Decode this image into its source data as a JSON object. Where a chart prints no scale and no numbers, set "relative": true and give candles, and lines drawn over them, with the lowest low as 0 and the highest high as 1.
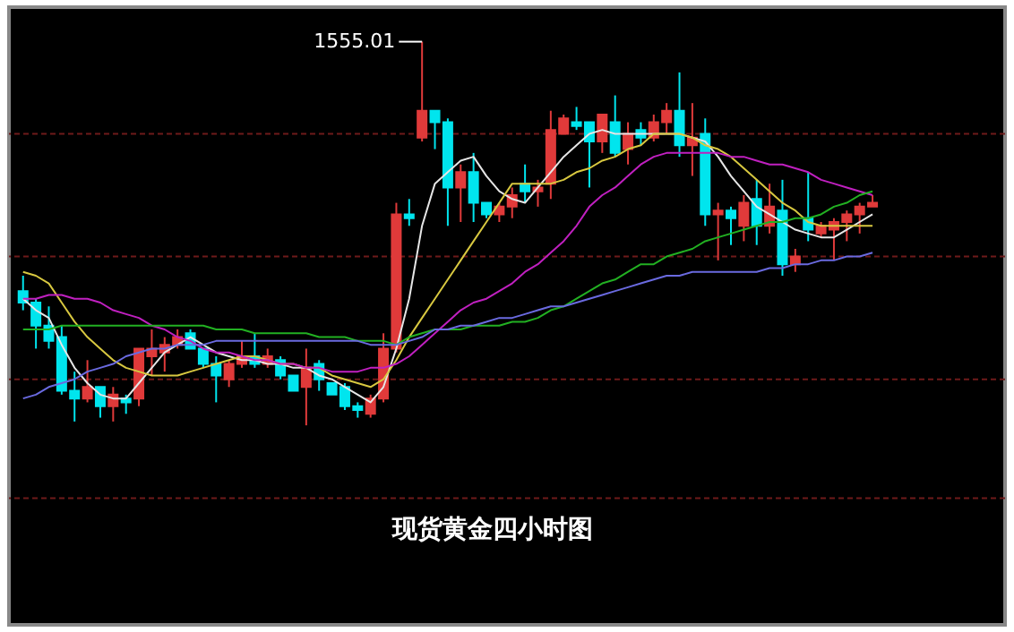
{
  "chart_data": {
    "type": "candlestick",
    "title": "现货黄金四小时图",
    "relative": true,
    "tick_labels": false,
    "grid": false,
    "categories": [
      null,
      null,
      null,
      null,
      null,
      null,
      null,
      null,
      null,
      null,
      null,
      null,
      null,
      null,
      null,
      null,
      null,
      null,
      null,
      null,
      null,
      null,
      null,
      null,
      null,
      null,
      null,
      null,
      null,
      null,
      null,
      null,
      null,
      null,
      null,
      null,
      null,
      null,
      null,
      null,
      null,
      null,
      null,
      null,
      null,
      null,
      null,
      null,
      null,
      null,
      null,
      null,
      null,
      null,
      null,
      null,
      null,
      null,
      null,
      null,
      null,
      null,
      null,
      null,
      null,
      null,
      null
    ],
    "ohlc": [
      [
        0.35,
        0.39,
        0.3,
        0.32
      ],
      [
        0.32,
        0.33,
        0.2,
        0.26
      ],
      [
        0.26,
        0.31,
        0.2,
        0.22
      ],
      [
        0.23,
        0.26,
        0.08,
        0.09
      ],
      [
        0.09,
        0.14,
        0.01,
        0.07
      ],
      [
        0.07,
        0.17,
        0.06,
        0.1
      ],
      [
        0.1,
        0.1,
        0.02,
        0.05
      ],
      [
        0.05,
        0.1,
        0.01,
        0.08
      ],
      [
        0.07,
        0.08,
        0.03,
        0.06
      ],
      [
        0.07,
        0.2,
        0.05,
        0.2
      ],
      [
        0.18,
        0.25,
        0.13,
        0.2
      ],
      [
        0.19,
        0.23,
        0.14,
        0.21
      ],
      [
        0.21,
        0.25,
        0.2,
        0.23
      ],
      [
        0.24,
        0.25,
        0.2,
        0.2
      ],
      [
        0.2,
        0.2,
        0.15,
        0.16
      ],
      [
        0.16,
        0.18,
        0.06,
        0.13
      ],
      [
        0.12,
        0.17,
        0.1,
        0.16
      ],
      [
        0.16,
        0.22,
        0.15,
        0.18
      ],
      [
        0.18,
        0.24,
        0.15,
        0.16
      ],
      [
        0.16,
        0.2,
        0.15,
        0.18
      ],
      [
        0.17,
        0.18,
        0.12,
        0.13
      ],
      [
        0.13,
        0.13,
        0.09,
        0.09
      ],
      [
        0.1,
        0.2,
        0,
        0.15
      ],
      [
        0.16,
        0.17,
        0.09,
        0.12
      ],
      [
        0.11,
        0.11,
        0.08,
        0.08
      ],
      [
        0.1,
        0.11,
        0.04,
        0.05
      ],
      [
        0.05,
        0.06,
        0.02,
        0.04
      ],
      [
        0.03,
        0.08,
        0.02,
        0.07
      ],
      [
        0.07,
        0.24,
        0.06,
        0.2
      ],
      [
        0.2,
        0.58,
        0.19,
        0.55
      ],
      [
        0.55,
        0.59,
        0.52,
        0.54
      ],
      [
        0.75,
        1,
        0.74,
        0.82
      ],
      [
        0.82,
        0.82,
        0.72,
        0.79
      ],
      [
        0.79,
        0.8,
        0.52,
        0.62
      ],
      [
        0.62,
        0.68,
        0.53,
        0.66
      ],
      [
        0.66,
        0.71,
        0.53,
        0.58
      ],
      [
        0.58,
        0.58,
        0.54,
        0.55
      ],
      [
        0.55,
        0.58,
        0.53,
        0.57
      ],
      [
        0.57,
        0.62,
        0.54,
        0.6
      ],
      [
        0.63,
        0.68,
        0.58,
        0.61
      ],
      [
        0.61,
        0.64,
        0.57,
        0.62
      ],
      [
        0.63,
        0.82,
        0.59,
        0.77
      ],
      [
        0.76,
        0.81,
        0.76,
        0.8
      ],
      [
        0.79,
        0.83,
        0.77,
        0.78
      ],
      [
        0.79,
        0.79,
        0.62,
        0.74
      ],
      [
        0.74,
        0.81,
        0.71,
        0.81
      ],
      [
        0.79,
        0.86,
        0.7,
        0.71
      ],
      [
        0.72,
        0.79,
        0.68,
        0.76
      ],
      [
        0.77,
        0.79,
        0.73,
        0.75
      ],
      [
        0.75,
        0.81,
        0.74,
        0.79
      ],
      [
        0.79,
        0.84,
        0.76,
        0.82
      ],
      [
        0.82,
        0.92,
        0.7,
        0.73
      ],
      [
        0.73,
        0.84,
        0.65,
        0.75
      ],
      [
        0.76,
        0.8,
        0.52,
        0.55
      ],
      [
        0.55,
        0.58,
        0.43,
        0.56
      ],
      [
        0.56,
        0.57,
        0.47,
        0.54
      ],
      [
        0.52,
        0.6,
        0.48,
        0.58
      ],
      [
        0.59,
        0.64,
        0.47,
        0.52
      ],
      [
        0.52,
        0.63,
        0.5,
        0.57
      ],
      [
        0.56,
        0.64,
        0.39,
        0.42
      ],
      [
        0.42,
        0.46,
        0.4,
        0.44
      ],
      [
        0.54,
        0.66,
        0.48,
        0.51
      ],
      [
        0.5,
        0.53,
        0.49,
        0.52
      ],
      [
        0.51,
        0.54,
        0.43,
        0.53
      ],
      [
        0.53,
        0.56,
        0.48,
        0.55
      ],
      [
        0.55,
        0.58,
        0.5,
        0.57
      ],
      [
        0.57,
        0.6,
        0.57,
        0.58
      ]
    ],
    "colors": [
      "#00e5ee",
      "#00e5ee",
      "#00e5ee",
      "#00e5ee",
      "#00e5ee",
      "#e03a3a",
      "#00e5ee",
      "#e03a3a",
      "#00e5ee",
      "#e03a3a",
      "#e03a3a",
      "#e03a3a",
      "#e03a3a",
      "#00e5ee",
      "#00e5ee",
      "#00e5ee",
      "#e03a3a",
      "#e03a3a",
      "#00e5ee",
      "#e03a3a",
      "#00e5ee",
      "#00e5ee",
      "#e03a3a",
      "#00e5ee",
      "#00e5ee",
      "#00e5ee",
      "#00e5ee",
      "#e03a3a",
      "#e03a3a",
      "#e03a3a",
      "#00e5ee",
      "#e03a3a",
      "#00e5ee",
      "#00e5ee",
      "#e03a3a",
      "#00e5ee",
      "#00e5ee",
      "#e03a3a",
      "#e03a3a",
      "#00e5ee",
      "#e03a3a",
      "#e03a3a",
      "#e03a3a",
      "#00e5ee",
      "#00e5ee",
      "#e03a3a",
      "#00e5ee",
      "#e03a3a",
      "#00e5ee",
      "#e03a3a",
      "#e03a3a",
      "#00e5ee",
      "#e03a3a",
      "#00e5ee",
      "#e03a3a",
      "#00e5ee",
      "#e03a3a",
      "#00e5ee",
      "#e03a3a",
      "#00e5ee",
      "#e03a3a",
      "#00e5ee",
      "#e03a3a",
      "#e03a3a",
      "#e03a3a",
      "#e03a3a",
      "#e03a3a"
    ],
    "series": [
      {
        "type": "line",
        "color": "#e6e6e6",
        "values": [
          0.33,
          0.3,
          0.28,
          0.21,
          0.15,
          0.11,
          0.08,
          0.07,
          0.07,
          0.11,
          0.15,
          0.19,
          0.21,
          0.23,
          0.21,
          0.19,
          0.18,
          0.17,
          0.17,
          0.16,
          0.16,
          0.15,
          0.15,
          0.13,
          0.12,
          0.1,
          0.08,
          0.06,
          0.1,
          0.2,
          0.33,
          0.52,
          0.63,
          0.66,
          0.69,
          0.7,
          0.65,
          0.61,
          0.59,
          0.58,
          0.62,
          0.66,
          0.7,
          0.73,
          0.76,
          0.77,
          0.76,
          0.76,
          0.76,
          0.76,
          0.76,
          0.76,
          0.75,
          0.74,
          0.7,
          0.65,
          0.61,
          0.57,
          0.55,
          0.53,
          0.51,
          0.5,
          0.49,
          0.49,
          0.51,
          0.53,
          0.55
        ]
      },
      {
        "type": "line",
        "color": "#d8c840",
        "values": [
          0.4,
          0.39,
          0.37,
          0.32,
          0.27,
          0.23,
          0.2,
          0.17,
          0.15,
          0.14,
          0.13,
          0.13,
          0.13,
          0.14,
          0.15,
          0.16,
          0.17,
          0.18,
          0.18,
          0.17,
          0.16,
          0.16,
          0.15,
          0.15,
          0.13,
          0.12,
          0.11,
          0.1,
          0.12,
          0.17,
          0.23,
          0.28,
          0.33,
          0.38,
          0.43,
          0.48,
          0.53,
          0.58,
          0.63,
          0.63,
          0.63,
          0.63,
          0.64,
          0.66,
          0.67,
          0.69,
          0.7,
          0.72,
          0.73,
          0.76,
          0.76,
          0.76,
          0.75,
          0.73,
          0.72,
          0.7,
          0.67,
          0.64,
          0.61,
          0.58,
          0.56,
          0.53,
          0.52,
          0.52,
          0.52,
          0.52,
          0.52
        ]
      },
      {
        "type": "line",
        "color": "#c020c0",
        "values": [
          0.33,
          0.33,
          0.34,
          0.34,
          0.33,
          0.33,
          0.32,
          0.3,
          0.29,
          0.28,
          0.26,
          0.25,
          0.23,
          0.22,
          0.2,
          0.19,
          0.19,
          0.18,
          0.17,
          0.17,
          0.16,
          0.16,
          0.15,
          0.15,
          0.14,
          0.14,
          0.14,
          0.15,
          0.15,
          0.16,
          0.18,
          0.21,
          0.24,
          0.27,
          0.3,
          0.32,
          0.33,
          0.35,
          0.37,
          0.4,
          0.42,
          0.45,
          0.48,
          0.52,
          0.57,
          0.6,
          0.62,
          0.65,
          0.68,
          0.7,
          0.71,
          0.71,
          0.71,
          0.71,
          0.71,
          0.7,
          0.7,
          0.69,
          0.68,
          0.68,
          0.67,
          0.66,
          0.64,
          0.63,
          0.62,
          0.61,
          0.6
        ]
      },
      {
        "type": "line",
        "color": "#22b022",
        "values": [
          0.25,
          0.25,
          0.25,
          0.26,
          0.26,
          0.26,
          0.26,
          0.26,
          0.26,
          0.26,
          0.26,
          0.26,
          0.26,
          0.26,
          0.26,
          0.25,
          0.25,
          0.25,
          0.24,
          0.24,
          0.24,
          0.24,
          0.24,
          0.23,
          0.23,
          0.23,
          0.22,
          0.22,
          0.22,
          0.21,
          0.23,
          0.24,
          0.25,
          0.25,
          0.25,
          0.26,
          0.26,
          0.26,
          0.27,
          0.27,
          0.28,
          0.3,
          0.31,
          0.33,
          0.35,
          0.37,
          0.38,
          0.4,
          0.42,
          0.42,
          0.44,
          0.45,
          0.46,
          0.48,
          0.49,
          0.5,
          0.51,
          0.52,
          0.53,
          0.53,
          0.54,
          0.54,
          0.55,
          0.57,
          0.58,
          0.6,
          0.61
        ]
      },
      {
        "type": "line",
        "color": "#6a6ae0",
        "values": [
          0.07,
          0.08,
          0.1,
          0.11,
          0.12,
          0.14,
          0.15,
          0.16,
          0.18,
          0.19,
          0.2,
          0.2,
          0.21,
          0.21,
          0.21,
          0.22,
          0.22,
          0.22,
          0.22,
          0.22,
          0.22,
          0.22,
          0.22,
          0.22,
          0.22,
          0.22,
          0.22,
          0.21,
          0.21,
          0.21,
          0.22,
          0.23,
          0.25,
          0.25,
          0.26,
          0.26,
          0.27,
          0.28,
          0.28,
          0.29,
          0.3,
          0.31,
          0.31,
          0.32,
          0.33,
          0.34,
          0.35,
          0.36,
          0.37,
          0.38,
          0.39,
          0.39,
          0.4,
          0.4,
          0.4,
          0.4,
          0.4,
          0.4,
          0.41,
          0.41,
          0.42,
          0.42,
          0.43,
          0.43,
          0.44,
          0.44,
          0.45
        ]
      }
    ],
    "ref_lines": [
      {
        "axis": "y",
        "value": 0.76,
        "color": "#6e1a1a",
        "line_style": "dashed"
      },
      {
        "axis": "y",
        "value": 0.44,
        "color": "#6e1a1a",
        "line_style": "dashed"
      },
      {
        "axis": "y",
        "value": 0.12,
        "color": "#6e1a1a",
        "line_style": "dashed"
      },
      {
        "axis": "y",
        "value": -0.19,
        "color": "#6e1a1a",
        "line_style": "dashed"
      }
    ],
    "annotations": [
      "1555.01"
    ]
  }
}
